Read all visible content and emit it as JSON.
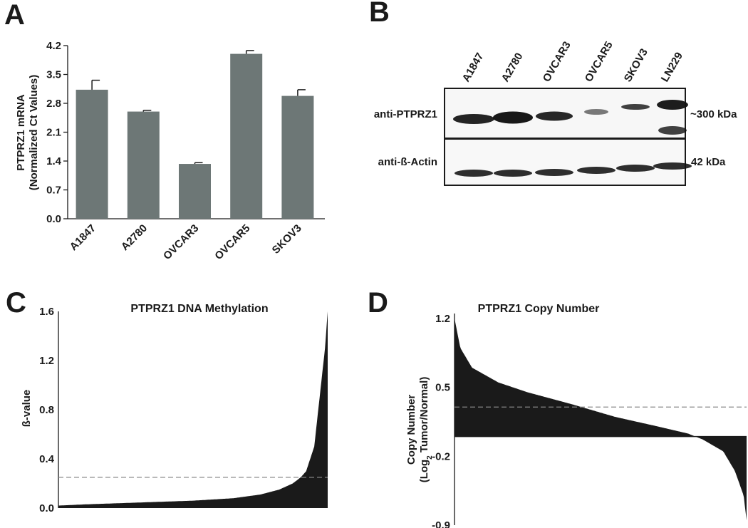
{
  "panel_labels": {
    "a": "A",
    "b": "B",
    "c": "C",
    "d": "D"
  },
  "western_blot": {
    "lanes": [
      "A1847",
      "A2780",
      "OVCAR3",
      "OVCAR5",
      "SKOV3",
      "LN229"
    ],
    "rows": [
      {
        "antibody": "anti-PTPRZ1",
        "size": "~300 kDa"
      },
      {
        "antibody": "anti-ß-Actin",
        "size": "42 kDa"
      }
    ]
  },
  "chart_data": [
    {
      "type": "bar",
      "title": "",
      "xlabel": "",
      "ylabel": "PTPRZ1 mRNA",
      "ylabel2": "(Normalized Ct Values)",
      "categories": [
        "A1847",
        "A2780",
        "OVCAR3",
        "OVCAR5",
        "SKOV3"
      ],
      "values": [
        3.13,
        2.6,
        1.33,
        4.0,
        2.98
      ],
      "errors": [
        0.23,
        0.03,
        0.03,
        0.08,
        0.15
      ],
      "ylim": [
        0,
        4.2
      ],
      "yticks": [
        "0.0",
        "0.7",
        "1.4",
        "2.1",
        "2.8",
        "3.5",
        "4.2"
      ],
      "color": "#6d7776"
    },
    {
      "type": "area",
      "title": "PTPRZ1 DNA Methylation",
      "ylabel": "ß-value",
      "sorted": "ascending",
      "curve": [
        [
          0,
          0.02
        ],
        [
          0.1,
          0.03
        ],
        [
          0.3,
          0.045
        ],
        [
          0.5,
          0.06
        ],
        [
          0.65,
          0.08
        ],
        [
          0.75,
          0.11
        ],
        [
          0.82,
          0.15
        ],
        [
          0.87,
          0.2
        ],
        [
          0.9,
          0.25
        ],
        [
          0.92,
          0.3
        ],
        [
          0.95,
          0.5
        ],
        [
          0.97,
          0.9
        ],
        [
          0.99,
          1.3
        ],
        [
          1,
          1.6
        ]
      ],
      "ylim": [
        0,
        1.6
      ],
      "yticks": [
        "0.0",
        "0.4",
        "0.8",
        "1.2",
        "1.6"
      ],
      "threshold": 0.25,
      "color": "#1a1a1a"
    },
    {
      "type": "area",
      "title": "PTPRZ1 Copy Number",
      "ylabel": "Copy Number",
      "ylabel2": "(Log2 Tumor/Normal)",
      "sorted": "descending",
      "curve": [
        [
          0,
          1.2
        ],
        [
          0.02,
          0.9
        ],
        [
          0.06,
          0.7
        ],
        [
          0.15,
          0.55
        ],
        [
          0.25,
          0.45
        ],
        [
          0.4,
          0.33
        ],
        [
          0.55,
          0.2
        ],
        [
          0.7,
          0.1
        ],
        [
          0.8,
          0.03
        ],
        [
          0.85,
          -0.03
        ],
        [
          0.92,
          -0.15
        ],
        [
          0.96,
          -0.35
        ],
        [
          0.99,
          -0.6
        ],
        [
          1,
          -0.85
        ]
      ],
      "ylim": [
        -0.9,
        1.25
      ],
      "yticks": [
        "-0.9",
        "-0.2",
        "0.5",
        "1.2"
      ],
      "threshold": 0.3,
      "color": "#1a1a1a"
    }
  ]
}
